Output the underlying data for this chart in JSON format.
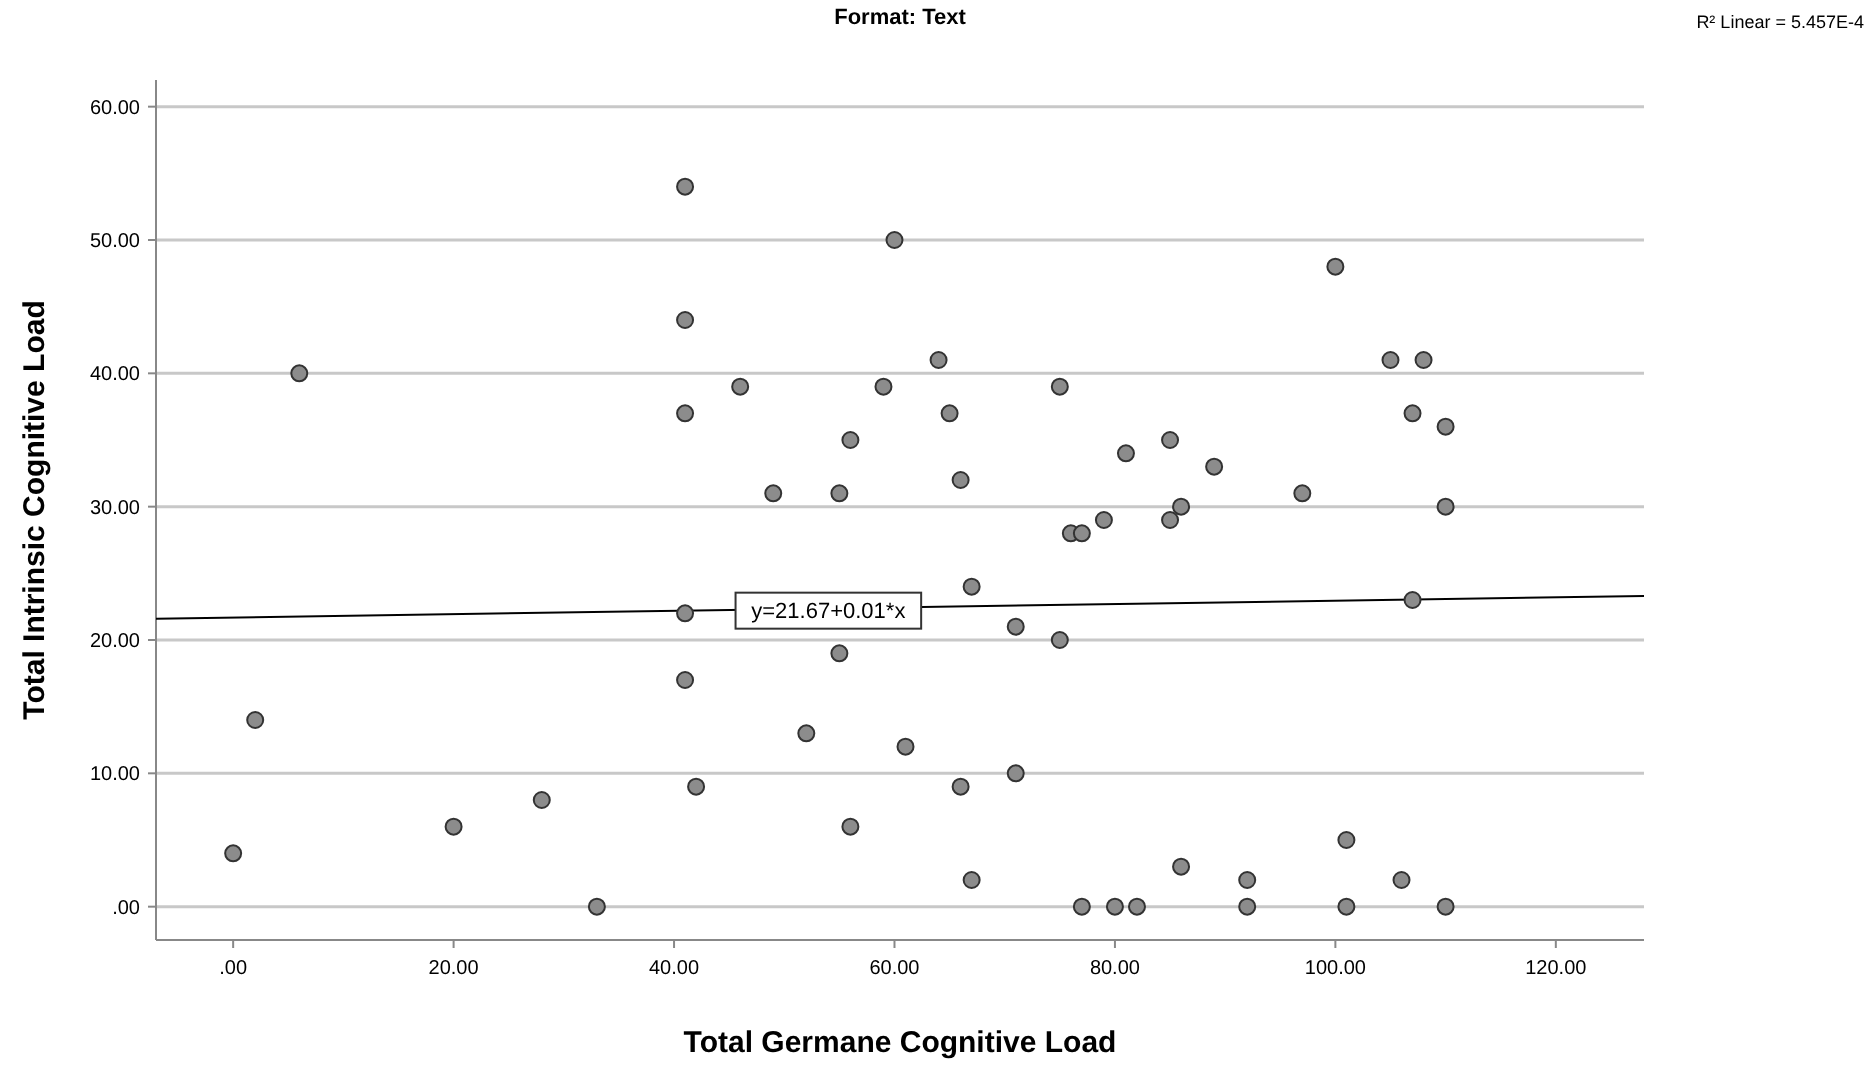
{
  "chart_data": {
    "type": "scatter",
    "title": "Format: Text",
    "xlabel": "Total Germane Cognitive Load",
    "ylabel": "Total Intrinsic Cognitive Load",
    "xlim": [
      -7,
      128
    ],
    "ylim": [
      -2.5,
      62
    ],
    "xticks": [
      {
        "value": 0,
        "label": ".00"
      },
      {
        "value": 20,
        "label": "20.00"
      },
      {
        "value": 40,
        "label": "40.00"
      },
      {
        "value": 60,
        "label": "60.00"
      },
      {
        "value": 80,
        "label": "80.00"
      },
      {
        "value": 100,
        "label": "100.00"
      },
      {
        "value": 120,
        "label": "120.00"
      }
    ],
    "yticks": [
      {
        "value": 0,
        "label": ".00"
      },
      {
        "value": 10,
        "label": "10.00"
      },
      {
        "value": 20,
        "label": "20.00"
      },
      {
        "value": 30,
        "label": "30.00"
      },
      {
        "value": 40,
        "label": "40.00"
      },
      {
        "value": 50,
        "label": "50.00"
      },
      {
        "value": 60,
        "label": "60.00"
      }
    ],
    "grid": "y",
    "series": [
      {
        "marker": "circle",
        "color": "#8c8c8c",
        "x": [
          0,
          2,
          6,
          20,
          28,
          33,
          41,
          41,
          41,
          41,
          41,
          42,
          46,
          49,
          52,
          55,
          55,
          56,
          56,
          59,
          60,
          61,
          64,
          65,
          66,
          66,
          67,
          67,
          71,
          71,
          75,
          75,
          76,
          77,
          77,
          79,
          80,
          81,
          82,
          85,
          85,
          86,
          86,
          89,
          92,
          92,
          97,
          100,
          101,
          101,
          105,
          106,
          107,
          107,
          108,
          110,
          110,
          110
        ],
        "values": [
          4,
          14,
          40,
          6,
          8,
          0,
          54,
          44,
          37,
          22,
          17,
          9,
          39,
          31,
          13,
          31,
          19,
          35,
          6,
          39,
          50,
          12,
          41,
          37,
          32,
          9,
          24,
          2,
          21,
          10,
          39,
          20,
          28,
          28,
          0,
          29,
          0,
          34,
          0,
          35,
          29,
          30,
          3,
          33,
          2,
          0,
          31,
          48,
          5,
          0,
          41,
          2,
          37,
          23,
          41,
          36,
          30,
          0
        ]
      },
      {
        "type": "line",
        "color": "#000000",
        "x": [
          -7,
          128
        ],
        "values": [
          21.6,
          23.3
        ]
      }
    ],
    "annotations": [
      {
        "text": "y=21.67+0.01*x",
        "x": 54,
        "y": 22.2
      },
      "R² Linear = 5.457E-4"
    ]
  }
}
